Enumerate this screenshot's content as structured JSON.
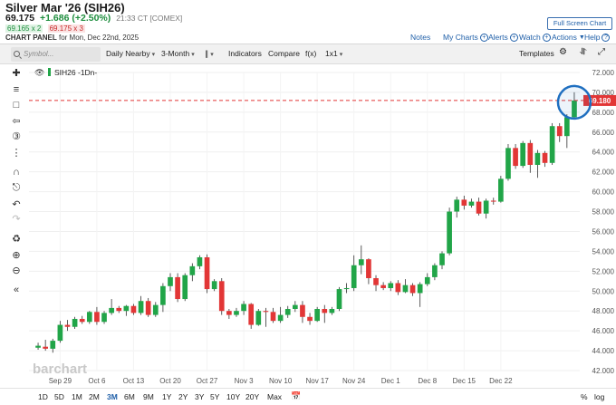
{
  "header": {
    "title": "Silver Mar '26 (SIH26)",
    "last": "69.175",
    "change": "+1.686 (+2.50%)",
    "time": "21:33 CT [COMEX]",
    "bid": "69.165 x 2",
    "ask": "69.175 x 3",
    "panel_label": "CHART PANEL",
    "panel_date": "for Mon, Dec 22nd, 2025",
    "fullscreen": "Full Screen Chart",
    "notes": "Notes",
    "my_charts": "My Charts",
    "alerts": "Alerts",
    "watch": "Watch",
    "actions": "Actions",
    "help": "Help"
  },
  "toolbar": {
    "symbol_placeholder": "Symbol...",
    "interval": "Daily Nearby",
    "period": "3-Month",
    "bar_type": "∥",
    "indicators": "Indicators",
    "compare": "Compare",
    "fx": "f(x)",
    "layout": "1x1",
    "templates": "Templates"
  },
  "chart": {
    "legend_symbol": "SIH26 -1Dn-",
    "watermark": "barchart",
    "last_price_label": "69.180",
    "colors": {
      "up": "#21a548",
      "down": "#e23636",
      "price_line": "#e23636",
      "highlight": "#1f6fc0"
    },
    "y_ticks": [
      "72.000",
      "70.000",
      "68.000",
      "66.000",
      "64.000",
      "62.000",
      "60.000",
      "58.000",
      "56.000",
      "54.000",
      "52.000",
      "50.000",
      "48.000",
      "46.000",
      "44.000",
      "42.000"
    ],
    "x_ticks": [
      "Sep 29",
      "Oct 6",
      "Oct 13",
      "Oct 20",
      "Oct 27",
      "Nov 3",
      "Nov 10",
      "Nov 17",
      "Nov 24",
      "Dec 1",
      "Dec 8",
      "Dec 15",
      "Dec 22"
    ]
  },
  "chart_data": {
    "type": "candlestick",
    "title": "",
    "ylim": [
      42,
      72
    ],
    "series": [
      {
        "date": "Sep 24",
        "ohlc": [
          44.3,
          44.8,
          44.1,
          44.5
        ]
      },
      {
        "date": "Sep 25",
        "ohlc": [
          44.4,
          45.1,
          44.0,
          44.2
        ]
      },
      {
        "date": "Sep 26",
        "ohlc": [
          44.2,
          45.2,
          43.8,
          45.0
        ]
      },
      {
        "date": "Sep 29",
        "ohlc": [
          45.0,
          47.0,
          44.8,
          46.6
        ]
      },
      {
        "date": "Sep 30",
        "ohlc": [
          46.6,
          47.1,
          46.0,
          46.4
        ]
      },
      {
        "date": "Oct 1",
        "ohlc": [
          46.4,
          47.4,
          46.2,
          47.2
        ]
      },
      {
        "date": "Oct 2",
        "ohlc": [
          47.2,
          47.5,
          46.7,
          46.9
        ]
      },
      {
        "date": "Oct 3",
        "ohlc": [
          46.9,
          48.0,
          46.7,
          47.9
        ]
      },
      {
        "date": "Oct 6",
        "ohlc": [
          47.9,
          48.4,
          46.6,
          46.9
        ]
      },
      {
        "date": "Oct 7",
        "ohlc": [
          46.9,
          48.0,
          46.7,
          47.8
        ]
      },
      {
        "date": "Oct 8",
        "ohlc": [
          47.8,
          49.2,
          47.6,
          48.3
        ]
      },
      {
        "date": "Oct 9",
        "ohlc": [
          48.3,
          48.5,
          47.8,
          48.0
        ]
      },
      {
        "date": "Oct 10",
        "ohlc": [
          48.0,
          48.6,
          47.5,
          48.5
        ]
      },
      {
        "date": "Oct 13",
        "ohlc": [
          48.5,
          48.7,
          47.6,
          47.8
        ]
      },
      {
        "date": "Oct 14",
        "ohlc": [
          47.8,
          49.5,
          47.6,
          49.0
        ]
      },
      {
        "date": "Oct 15",
        "ohlc": [
          49.0,
          49.3,
          47.4,
          47.6
        ]
      },
      {
        "date": "Oct 16",
        "ohlc": [
          47.6,
          48.9,
          47.4,
          48.6
        ]
      },
      {
        "date": "Oct 17",
        "ohlc": [
          48.6,
          50.8,
          47.9,
          50.5
        ]
      },
      {
        "date": "Oct 20",
        "ohlc": [
          50.5,
          51.8,
          50.0,
          51.4
        ]
      },
      {
        "date": "Oct 21",
        "ohlc": [
          51.4,
          51.8,
          48.9,
          49.2
        ]
      },
      {
        "date": "Oct 22",
        "ohlc": [
          49.2,
          51.8,
          49.0,
          51.6
        ]
      },
      {
        "date": "Oct 23",
        "ohlc": [
          51.6,
          52.8,
          51.0,
          52.5
        ]
      },
      {
        "date": "Oct 24",
        "ohlc": [
          52.5,
          53.6,
          52.2,
          53.4
        ]
      },
      {
        "date": "Oct 27",
        "ohlc": [
          53.4,
          53.7,
          49.8,
          50.2
        ]
      },
      {
        "date": "Oct 28",
        "ohlc": [
          50.2,
          51.2,
          50.0,
          51.0
        ]
      },
      {
        "date": "Oct 29",
        "ohlc": [
          51.0,
          51.3,
          47.6,
          48.0
        ]
      },
      {
        "date": "Oct 30",
        "ohlc": [
          48.0,
          48.2,
          47.2,
          47.6
        ]
      },
      {
        "date": "Oct 31",
        "ohlc": [
          47.6,
          48.3,
          47.4,
          48.0
        ]
      },
      {
        "date": "Nov 3",
        "ohlc": [
          48.0,
          49.0,
          47.6,
          48.7
        ]
      },
      {
        "date": "Nov 4",
        "ohlc": [
          48.7,
          48.8,
          46.2,
          46.6
        ]
      },
      {
        "date": "Nov 5",
        "ohlc": [
          46.6,
          48.2,
          46.5,
          48.0
        ]
      },
      {
        "date": "Nov 6",
        "ohlc": [
          48.0,
          48.3,
          46.4,
          47.9
        ]
      },
      {
        "date": "Nov 7",
        "ohlc": [
          47.9,
          48.3,
          46.8,
          47.0
        ]
      },
      {
        "date": "Nov 10",
        "ohlc": [
          47.0,
          48.4,
          46.8,
          47.6
        ]
      },
      {
        "date": "Nov 11",
        "ohlc": [
          47.6,
          48.5,
          47.3,
          48.2
        ]
      },
      {
        "date": "Nov 12",
        "ohlc": [
          48.2,
          49.0,
          47.9,
          48.6
        ]
      },
      {
        "date": "Nov 13",
        "ohlc": [
          48.6,
          49.0,
          46.8,
          47.4
        ]
      },
      {
        "date": "Nov 14",
        "ohlc": [
          47.4,
          47.8,
          46.6,
          47.0
        ]
      },
      {
        "date": "Nov 17",
        "ohlc": [
          47.0,
          48.4,
          46.9,
          48.2
        ]
      },
      {
        "date": "Nov 18",
        "ohlc": [
          48.2,
          48.6,
          46.8,
          47.8
        ]
      },
      {
        "date": "Nov 19",
        "ohlc": [
          47.8,
          48.4,
          47.6,
          48.2
        ]
      },
      {
        "date": "Nov 20",
        "ohlc": [
          48.2,
          50.4,
          48.0,
          50.2
        ]
      },
      {
        "date": "Nov 21",
        "ohlc": [
          50.2,
          50.8,
          49.8,
          50.3
        ]
      },
      {
        "date": "Nov 24",
        "ohlc": [
          50.3,
          53.6,
          50.0,
          52.6
        ]
      },
      {
        "date": "Nov 25",
        "ohlc": [
          52.6,
          54.6,
          51.7,
          53.2
        ]
      },
      {
        "date": "Nov 26",
        "ohlc": [
          53.2,
          53.3,
          50.7,
          51.3
        ]
      },
      {
        "date": "Nov 27",
        "ohlc": [
          51.3,
          51.6,
          50.0,
          50.6
        ]
      },
      {
        "date": "Nov 28",
        "ohlc": [
          50.6,
          50.9,
          50.1,
          50.3
        ]
      },
      {
        "date": "Dec 1",
        "ohlc": [
          50.3,
          51.0,
          50.0,
          50.8
        ]
      },
      {
        "date": "Dec 2",
        "ohlc": [
          50.8,
          51.1,
          49.6,
          49.9
        ]
      },
      {
        "date": "Dec 3",
        "ohlc": [
          49.9,
          51.2,
          49.8,
          50.6
        ]
      },
      {
        "date": "Dec 4",
        "ohlc": [
          50.6,
          50.8,
          49.5,
          49.8
        ]
      },
      {
        "date": "Dec 5",
        "ohlc": [
          49.8,
          50.9,
          48.4,
          50.7
        ]
      },
      {
        "date": "Dec 8",
        "ohlc": [
          50.7,
          51.8,
          50.5,
          51.4
        ]
      },
      {
        "date": "Dec 9",
        "ohlc": [
          51.4,
          52.8,
          51.1,
          52.6
        ]
      },
      {
        "date": "Dec 10",
        "ohlc": [
          52.6,
          54.0,
          52.2,
          53.8
        ]
      },
      {
        "date": "Dec 11",
        "ohlc": [
          53.8,
          58.4,
          53.6,
          58.0
        ]
      },
      {
        "date": "Dec 12",
        "ohlc": [
          58.0,
          59.5,
          57.4,
          59.2
        ]
      },
      {
        "date": "Dec 15",
        "ohlc": [
          59.2,
          59.6,
          58.2,
          58.6
        ]
      },
      {
        "date": "Dec 16",
        "ohlc": [
          58.6,
          59.3,
          58.4,
          59.0
        ]
      },
      {
        "date": "Dec 17",
        "ohlc": [
          59.0,
          59.4,
          57.6,
          57.8
        ]
      },
      {
        "date": "Dec 18",
        "ohlc": [
          57.8,
          59.3,
          57.3,
          59.1
        ]
      },
      {
        "date": "Dec 19",
        "ohlc": [
          59.1,
          59.4,
          58.7,
          59.0
        ]
      },
      {
        "date": "Dec 22",
        "ohlc": [
          59.0,
          61.6,
          58.9,
          61.3
        ]
      },
      {
        "date": "Dec 23",
        "ohlc": [
          61.3,
          64.8,
          61.1,
          64.4
        ]
      },
      {
        "date": "Dec 24",
        "ohlc": [
          64.4,
          64.8,
          62.3,
          62.6
        ]
      },
      {
        "date": "Dec 25",
        "ohlc": [
          62.6,
          65.1,
          62.4,
          64.9
        ]
      },
      {
        "date": "Dec 26",
        "ohlc": [
          64.9,
          65.2,
          61.9,
          62.7
        ]
      },
      {
        "date": "Dec 29",
        "ohlc": [
          62.7,
          64.2,
          61.4,
          63.9
        ]
      },
      {
        "date": "Dec 30",
        "ohlc": [
          63.9,
          64.1,
          62.5,
          62.9
        ]
      },
      {
        "date": "Dec 31",
        "ohlc": [
          62.9,
          66.9,
          62.7,
          66.6
        ]
      },
      {
        "date": "Jan 1",
        "ohlc": [
          66.6,
          66.9,
          65.0,
          65.6
        ]
      },
      {
        "date": "Jan 2",
        "ohlc": [
          65.6,
          67.8,
          64.4,
          67.5
        ]
      },
      {
        "date": "Jan 5",
        "ohlc": [
          67.5,
          70.0,
          67.3,
          69.18
        ]
      }
    ]
  },
  "timeframes": [
    "1D",
    "5D",
    "1M",
    "2M",
    "3M",
    "6M",
    "9M",
    "1Y",
    "2Y",
    "3Y",
    "5Y",
    "10Y",
    "20Y",
    "Max"
  ],
  "active_timeframe": "3M",
  "bottom_right": {
    "percent": "%",
    "log": "log"
  }
}
